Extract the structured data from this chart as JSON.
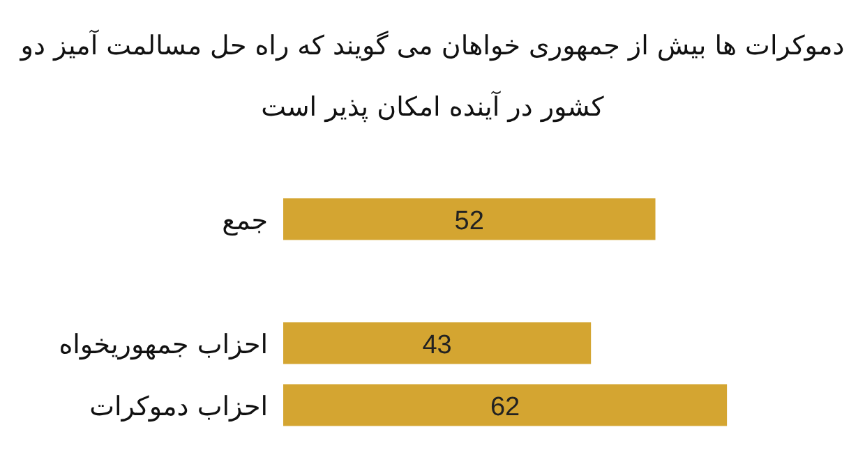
{
  "chart_data": {
    "type": "bar",
    "orientation": "horizontal",
    "title": "دموکرات ها بیش از جمهوری خواهان می گویند که راه حل مسالمت آمیز دو کشور در آینده امکان پذیر است",
    "categories": [
      "جمع",
      null,
      "احزاب جمهوریخواه",
      "احزاب دموکرات"
    ],
    "values": [
      52,
      null,
      43,
      62
    ],
    "color": "#d4a531",
    "data_labels": true
  }
}
